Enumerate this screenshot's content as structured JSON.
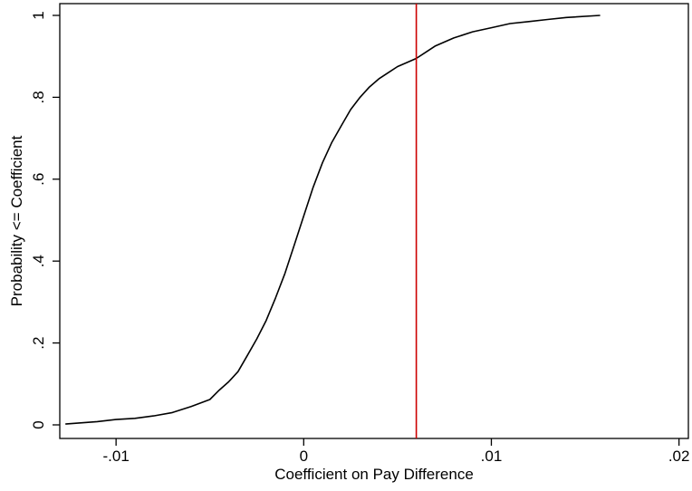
{
  "chart_data": {
    "type": "line",
    "title": "",
    "xlabel": "Coefficient on Pay Difference",
    "ylabel": "Probability <= Coefficient",
    "xlim": [
      -0.013,
      0.0205
    ],
    "ylim": [
      0,
      1
    ],
    "x_ticks": [
      {
        "value": -0.01,
        "label": "-.01"
      },
      {
        "value": 0,
        "label": "0"
      },
      {
        "value": 0.01,
        "label": ".01"
      },
      {
        "value": 0.02,
        "label": ".02"
      }
    ],
    "y_ticks": [
      {
        "value": 0,
        "label": "0"
      },
      {
        "value": 0.2,
        "label": ".2"
      },
      {
        "value": 0.4,
        "label": ".4"
      },
      {
        "value": 0.6,
        "label": ".6"
      },
      {
        "value": 0.8,
        "label": ".8"
      },
      {
        "value": 1,
        "label": "1"
      }
    ],
    "grid": false,
    "legend": "none",
    "reference_line": {
      "orientation": "vertical",
      "x": 0.006,
      "color": "#cc0000"
    },
    "series": [
      {
        "color": "#000000",
        "x": [
          -0.0127,
          -0.011,
          -0.01,
          -0.009,
          -0.008,
          -0.007,
          -0.006,
          -0.005,
          -0.0045,
          -0.004,
          -0.0035,
          -0.003,
          -0.0025,
          -0.002,
          -0.0015,
          -0.001,
          -0.0005,
          0,
          0.0005,
          0.001,
          0.0015,
          0.002,
          0.0025,
          0.003,
          0.0035,
          0.004,
          0.0045,
          0.005,
          0.0055,
          0.006,
          0.0065,
          0.007,
          0.008,
          0.009,
          0.01,
          0.011,
          0.012,
          0.013,
          0.014,
          0.0158
        ],
        "y": [
          0.002,
          0.008,
          0.013,
          0.016,
          0.022,
          0.03,
          0.045,
          0.062,
          0.085,
          0.105,
          0.13,
          0.17,
          0.21,
          0.255,
          0.31,
          0.37,
          0.44,
          0.51,
          0.58,
          0.64,
          0.69,
          0.73,
          0.77,
          0.8,
          0.825,
          0.845,
          0.86,
          0.875,
          0.885,
          0.895,
          0.91,
          0.925,
          0.945,
          0.96,
          0.97,
          0.98,
          0.985,
          0.99,
          0.995,
          1.0
        ]
      }
    ]
  }
}
